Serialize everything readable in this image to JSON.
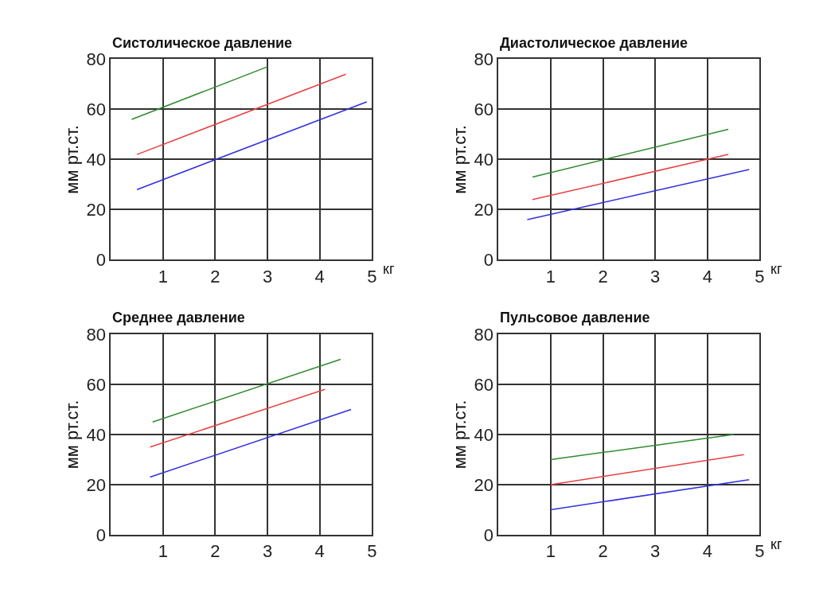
{
  "chart_data": [
    {
      "type": "line",
      "title": "Систолическое давление",
      "xlabel": "кг",
      "ylabel": "мм рт.ст.",
      "xlim": [
        0,
        5
      ],
      "xticks": [
        1,
        2,
        3,
        4,
        5
      ],
      "ylim": [
        0,
        80
      ],
      "yticks": [
        0,
        20,
        40,
        60,
        80
      ],
      "grid": true,
      "marker": "none",
      "line_style": "solid",
      "series": [
        {
          "color": "#2e8b2e",
          "x": [
            0.4,
            3.0
          ],
          "values": [
            56,
            77
          ]
        },
        {
          "color": "#e84040",
          "x": [
            0.5,
            4.5
          ],
          "values": [
            42,
            74
          ]
        },
        {
          "color": "#3030e0",
          "x": [
            0.5,
            4.9
          ],
          "values": [
            28,
            63
          ]
        }
      ]
    },
    {
      "type": "line",
      "title": "Диастолическое давление",
      "xlabel": "кг",
      "ylabel": "мм рт.ст.",
      "xlim": [
        0,
        5
      ],
      "xticks": [
        1,
        2,
        3,
        4,
        5
      ],
      "ylim": [
        0,
        80
      ],
      "yticks": [
        0,
        20,
        40,
        60,
        80
      ],
      "grid": true,
      "marker": "none",
      "line_style": "solid",
      "series": [
        {
          "color": "#2e8b2e",
          "x": [
            0.65,
            4.4
          ],
          "values": [
            33,
            52
          ]
        },
        {
          "color": "#e84040",
          "x": [
            0.65,
            4.4
          ],
          "values": [
            24,
            42
          ]
        },
        {
          "color": "#3030e0",
          "x": [
            0.55,
            4.8
          ],
          "values": [
            16,
            36
          ]
        }
      ]
    },
    {
      "type": "line",
      "title": "Среднее давление",
      "ylabel": "мм рт.ст.",
      "xlim": [
        0,
        5
      ],
      "xticks": [
        1,
        2,
        3,
        4,
        5
      ],
      "ylim": [
        0,
        80
      ],
      "yticks": [
        0,
        20,
        40,
        60,
        80
      ],
      "grid": true,
      "marker": "none",
      "line_style": "solid",
      "series": [
        {
          "color": "#2e8b2e",
          "x": [
            0.8,
            4.4
          ],
          "values": [
            45,
            70
          ]
        },
        {
          "color": "#e84040",
          "x": [
            0.75,
            4.1
          ],
          "values": [
            35,
            58
          ]
        },
        {
          "color": "#3030e0",
          "x": [
            0.75,
            4.6
          ],
          "values": [
            23,
            50
          ]
        }
      ]
    },
    {
      "type": "line",
      "title": "Пульсовое давление",
      "xlabel": "кг",
      "ylabel": "мм рт.ст.",
      "xlim": [
        0,
        5
      ],
      "xticks": [
        1,
        2,
        3,
        4,
        5
      ],
      "ylim": [
        0,
        80
      ],
      "yticks": [
        0,
        20,
        40,
        60,
        80
      ],
      "grid": true,
      "marker": "none",
      "line_style": "solid",
      "series": [
        {
          "color": "#2e8b2e",
          "x": [
            1.0,
            4.5
          ],
          "values": [
            30,
            40
          ]
        },
        {
          "color": "#e84040",
          "x": [
            1.0,
            4.7
          ],
          "values": [
            20,
            32
          ]
        },
        {
          "color": "#3030e0",
          "x": [
            1.0,
            4.8
          ],
          "values": [
            10,
            22
          ]
        }
      ]
    }
  ]
}
